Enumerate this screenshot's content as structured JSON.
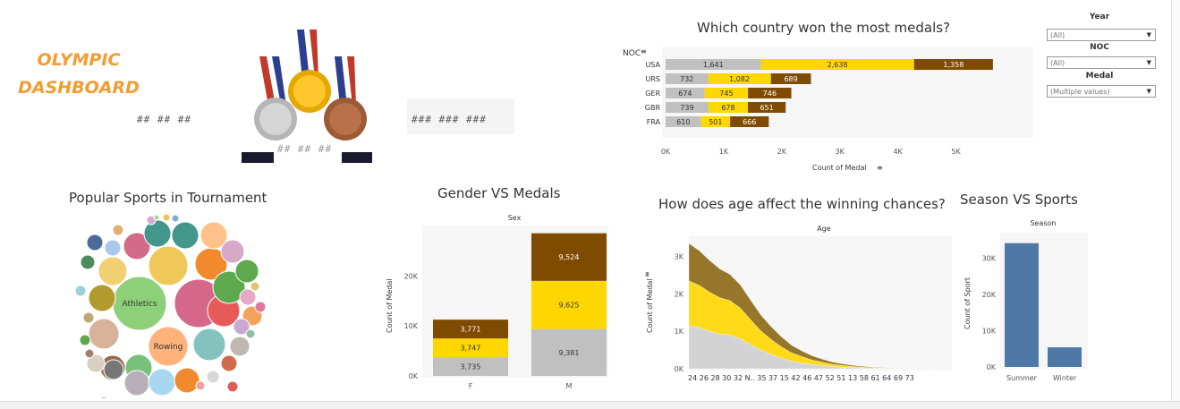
{
  "header": {
    "title_line1": "OLYMPIC",
    "title_line2": "DASHBOARD",
    "kpi_left": "##  ##  ##",
    "kpi_center": "##  ##  ##",
    "kpi_right": "###   ###   ###"
  },
  "filters": [
    {
      "label": "Year",
      "value": "(All)"
    },
    {
      "label": "NOC",
      "value": "(All)"
    },
    {
      "label": "Medal",
      "value": "(Multiple values)"
    }
  ],
  "colors": {
    "gold": "#ffd700",
    "silver": "#c0c0c0",
    "bronze": "#7f4b00",
    "blue": "#4e79a7",
    "title_orange": "#f39c32"
  },
  "chart_data": [
    {
      "id": "country",
      "type": "bar",
      "orientation": "horizontal",
      "stacked": true,
      "title": "Which country won the most medals?",
      "ylabel": "NOC",
      "xlabel": "Count of Medal",
      "categories": [
        "USA",
        "URS",
        "GER",
        "GBR",
        "FRA"
      ],
      "series": [
        {
          "name": "Silver",
          "color": "#c0c0c0",
          "values": [
            1641,
            732,
            674,
            739,
            610
          ]
        },
        {
          "name": "Gold",
          "color": "#ffd700",
          "values": [
            2638,
            1082,
            745,
            678,
            501
          ]
        },
        {
          "name": "Bronze",
          "color": "#7f4b00",
          "values": [
            1358,
            689,
            746,
            651,
            666
          ]
        }
      ],
      "xticks": [
        "0K",
        "1K",
        "2K",
        "3K",
        "4K",
        "5K"
      ],
      "xlim": [
        0,
        6000
      ]
    },
    {
      "id": "sports",
      "type": "bubble",
      "title": "Popular Sports in Tournament",
      "labels": [
        "Athletics",
        "Rowing"
      ]
    },
    {
      "id": "gender",
      "type": "bar",
      "stacked": true,
      "title": "Gender VS Medals",
      "xlabel": "Sex",
      "ylabel": "Count of Medal",
      "categories": [
        "F",
        "M"
      ],
      "series": [
        {
          "name": "Silver",
          "color": "#c0c0c0",
          "values": [
            3735,
            9381
          ]
        },
        {
          "name": "Gold",
          "color": "#ffd700",
          "values": [
            3747,
            9625
          ]
        },
        {
          "name": "Bronze",
          "color": "#7f4b00",
          "values": [
            3771,
            9524
          ]
        }
      ],
      "yticks": [
        "0K",
        "10K",
        "20K"
      ],
      "ylim": [
        0,
        29000
      ]
    },
    {
      "id": "age",
      "type": "area",
      "stacked": true,
      "title": "How does age affect the winning chances?",
      "xlabel": "Age",
      "ylabel": "Count of Medal",
      "x_tick_labels": "24 26 28 30 32 N.. 35 37 15 42 46 47 52 51 13 58 61 64 69 73",
      "yticks": [
        "0K",
        "1K",
        "2K",
        "3K"
      ],
      "ylim": [
        0,
        3400
      ],
      "series": [
        {
          "name": "Silver",
          "color": "#d0d0d0",
          "values": [
            1150,
            1100,
            1000,
            930,
            900,
            800,
            650,
            500,
            380,
            280,
            200,
            150,
            110,
            80,
            55,
            40,
            28,
            18,
            12,
            8,
            5,
            3,
            2,
            1,
            1,
            0
          ]
        },
        {
          "name": "Gold",
          "color": "#ffd700",
          "values": [
            1200,
            1130,
            1050,
            970,
            920,
            820,
            660,
            510,
            400,
            300,
            220,
            170,
            120,
            90,
            60,
            45,
            30,
            20,
            14,
            9,
            5,
            3,
            2,
            1,
            1,
            0
          ]
        },
        {
          "name": "Bronze",
          "color": "#8b6914",
          "values": [
            1000,
            930,
            850,
            770,
            700,
            620,
            520,
            420,
            340,
            270,
            200,
            150,
            110,
            80,
            58,
            42,
            30,
            22,
            15,
            10,
            6,
            4,
            2,
            1,
            1,
            0
          ]
        }
      ]
    },
    {
      "id": "season",
      "type": "bar",
      "title": "Season VS  Sports",
      "xlabel": "Season",
      "ylabel": "Count of Sport",
      "categories": [
        "Summer",
        "Winter"
      ],
      "values": [
        34100,
        5400
      ],
      "color": "#4e79a7",
      "yticks": [
        "0K",
        "10K",
        "20K",
        "30K"
      ],
      "ylim": [
        0,
        36000
      ]
    }
  ]
}
